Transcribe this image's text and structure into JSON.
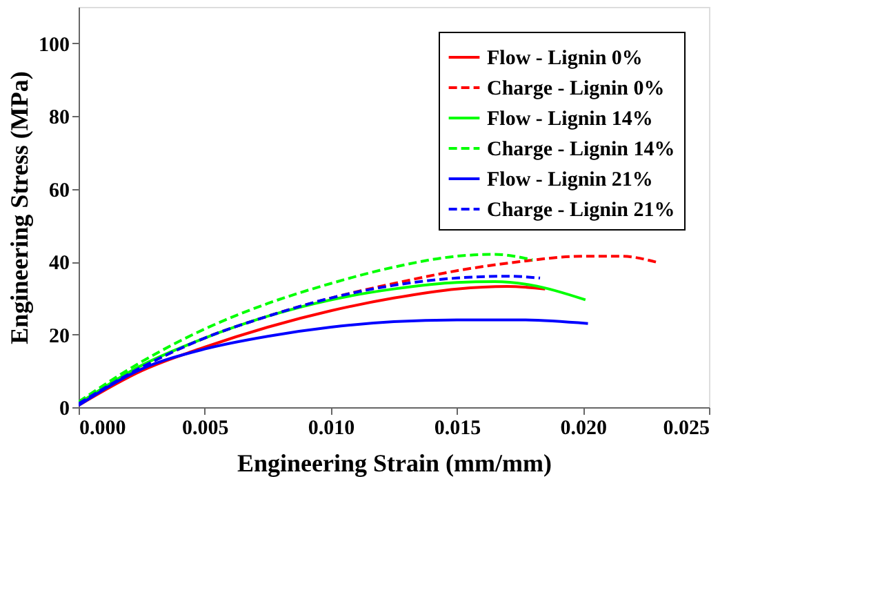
{
  "chart_data": {
    "type": "line",
    "xlabel": "Engineering Strain (mm/mm)",
    "ylabel": "Engineering Stress (MPa)",
    "xlim": [
      0,
      0.025
    ],
    "xticks": [
      {
        "value": 0,
        "label": "0.000"
      },
      0.005,
      {
        "value": 0.01,
        "label": "0.010"
      },
      0.015,
      {
        "value": 0.02,
        "label": "0.020"
      },
      0.025
    ],
    "ylim": [
      0,
      110
    ],
    "yticks": [
      0,
      20,
      40,
      60,
      80,
      100
    ],
    "grid": false,
    "legend": "top right",
    "series": [
      {
        "name": "Flow - Lignin 0%",
        "color": "#ff0000",
        "line_style": "solid",
        "x": [
          0,
          0.0025,
          0.005,
          0.0075,
          0.01,
          0.0125,
          0.015,
          0.017,
          0.0185
        ],
        "values": [
          0.5,
          10,
          16.5,
          22,
          26.5,
          30,
          32.5,
          33.2,
          32.5
        ]
      },
      {
        "name": "Charge - Lignin 0%",
        "color": "#ff0000",
        "line_style": "dashed",
        "x": [
          0,
          0.0025,
          0.005,
          0.0075,
          0.01,
          0.0125,
          0.015,
          0.0175,
          0.02,
          0.0215,
          0.023
        ],
        "values": [
          1,
          11,
          19,
          25,
          30,
          34,
          37.5,
          40,
          41.5,
          41.5,
          39.7
        ]
      },
      {
        "name": "Flow - Lignin 14%",
        "color": "#00ff00",
        "line_style": "solid",
        "x": [
          0,
          0.0025,
          0.005,
          0.0075,
          0.01,
          0.0125,
          0.015,
          0.0165,
          0.018,
          0.0201
        ],
        "values": [
          1,
          11.5,
          19,
          25,
          29.5,
          32.5,
          34.3,
          34.5,
          33.5,
          29.5
        ]
      },
      {
        "name": "Charge - Lignin 14%",
        "color": "#00ff00",
        "line_style": "dashed",
        "x": [
          0,
          0.0025,
          0.005,
          0.0075,
          0.01,
          0.0125,
          0.015,
          0.0165,
          0.018
        ],
        "values": [
          1.5,
          12.5,
          21.5,
          28.5,
          34,
          38.5,
          41.5,
          42,
          40.5
        ]
      },
      {
        "name": "Flow - Lignin 21%",
        "color": "#0000ff",
        "line_style": "solid",
        "x": [
          0,
          0.0025,
          0.005,
          0.0075,
          0.01,
          0.0125,
          0.015,
          0.0175,
          0.0202
        ],
        "values": [
          0.5,
          10.5,
          16,
          19.5,
          22,
          23.5,
          24,
          24,
          23
        ]
      },
      {
        "name": "Charge - Lignin 21%",
        "color": "#0000ff",
        "line_style": "dashed",
        "x": [
          0,
          0.0025,
          0.005,
          0.0075,
          0.01,
          0.0125,
          0.015,
          0.017,
          0.0183
        ],
        "values": [
          1,
          11,
          19,
          25,
          30,
          33.5,
          35.5,
          36,
          35.5
        ]
      }
    ]
  }
}
